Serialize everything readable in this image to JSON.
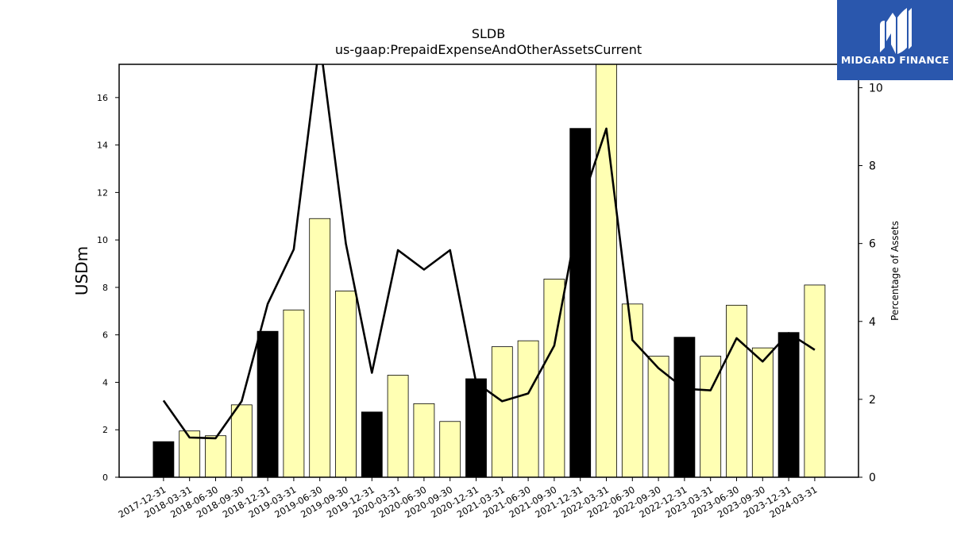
{
  "brand": {
    "name": "MIDGARD FINANCE",
    "bg_color": "#2a57ad"
  },
  "chart_data": {
    "type": "bar",
    "title": "SLDB",
    "subtitle": "us-gaap:PrepaidExpenseAndOtherAssetsCurrent",
    "ylabel": "USDm",
    "y2label": "Percentage of Assets",
    "ylim": [
      0,
      17.4
    ],
    "y2lim": [
      0,
      10.6
    ],
    "yticks": [
      0,
      2,
      4,
      6,
      8,
      10,
      12,
      14,
      16
    ],
    "y2ticks": [
      0,
      2,
      4,
      6,
      8,
      10
    ],
    "categories": [
      "2017-12-31",
      "2018-03-31",
      "2018-06-30",
      "2018-09-30",
      "2018-12-31",
      "2019-03-31",
      "2019-06-30",
      "2019-09-30",
      "2019-12-31",
      "2020-03-31",
      "2020-06-30",
      "2020-09-30",
      "2020-12-31",
      "2021-03-31",
      "2021-06-30",
      "2021-09-30",
      "2021-12-31",
      "2022-03-31",
      "2022-06-30",
      "2022-09-30",
      "2022-12-31",
      "2023-03-31",
      "2023-06-30",
      "2023-09-30",
      "2023-12-31",
      "2024-03-31"
    ],
    "series": [
      {
        "kind": "bar",
        "axis": "left",
        "values": [
          1.5,
          1.95,
          1.75,
          3.05,
          6.15,
          7.05,
          10.9,
          7.85,
          2.75,
          4.3,
          3.1,
          2.35,
          4.15,
          5.5,
          5.75,
          8.35,
          14.7,
          17.4,
          7.3,
          5.1,
          5.9,
          5.1,
          7.25,
          5.45,
          6.1,
          8.1
        ],
        "colors": [
          "#000000",
          "#ffffb3",
          "#ffffb3",
          "#ffffb3",
          "#000000",
          "#ffffb3",
          "#ffffb3",
          "#ffffb3",
          "#000000",
          "#ffffb3",
          "#ffffb3",
          "#ffffb3",
          "#000000",
          "#ffffb3",
          "#ffffb3",
          "#ffffb3",
          "#000000",
          "#ffffb3",
          "#ffffb3",
          "#ffffb3",
          "#000000",
          "#ffffb3",
          "#ffffb3",
          "#ffffb3",
          "#000000",
          "#ffffb3"
        ]
      },
      {
        "kind": "line",
        "axis": "right",
        "color": "#000000",
        "values": [
          1.97,
          1.02,
          1.0,
          1.95,
          4.45,
          5.85,
          11.2,
          6.0,
          2.68,
          5.83,
          5.33,
          5.83,
          2.43,
          1.95,
          2.15,
          3.38,
          6.95,
          8.95,
          3.52,
          2.8,
          2.27,
          2.23,
          3.57,
          2.97,
          3.7,
          3.27
        ]
      }
    ],
    "grid": false,
    "legend": "none"
  }
}
